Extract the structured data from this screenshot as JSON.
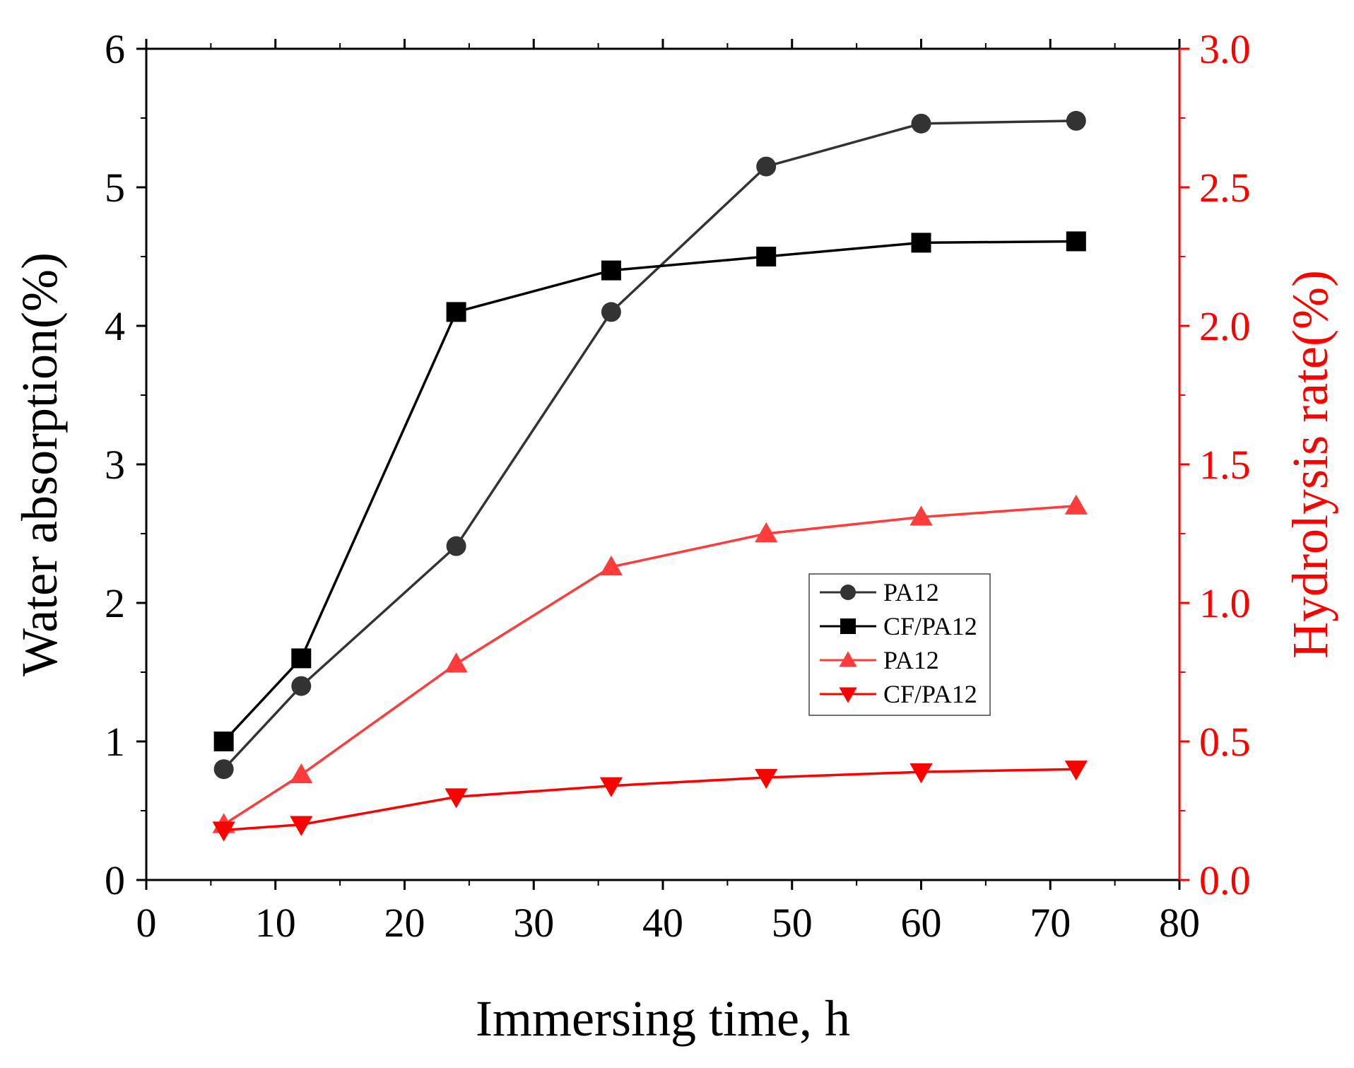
{
  "chart_data": {
    "type": "line",
    "xlabel": "Immersing time, h",
    "ylabel_left": "Water absorption(%)",
    "ylabel_right": "Hydrolysis rate(%)",
    "xlim": [
      0,
      80
    ],
    "ylim_left": [
      0,
      6
    ],
    "ylim_right": [
      0.0,
      3.0
    ],
    "x_ticks": [
      "0",
      "10",
      "20",
      "30",
      "40",
      "50",
      "60",
      "70",
      "80"
    ],
    "y_left_ticks": [
      "0",
      "1",
      "2",
      "3",
      "4",
      "5",
      "6"
    ],
    "y_right_ticks": [
      "0.0",
      "0.5",
      "1.0",
      "1.5",
      "2.0",
      "2.5",
      "3.0"
    ],
    "grid": false,
    "legend_position": "center-right",
    "colors": {
      "black": "#000000",
      "red": "#ff0000",
      "series_dark": "#333333",
      "series_light_red": "#ff3b3b"
    },
    "series": [
      {
        "name": "PA12",
        "axis": "left",
        "marker": "circle",
        "color": "#333333",
        "x": [
          6,
          12,
          24,
          36,
          48,
          60,
          72
        ],
        "values": [
          0.8,
          1.4,
          2.41,
          4.1,
          5.15,
          5.46,
          5.48
        ]
      },
      {
        "name": "CF/PA12",
        "axis": "left",
        "marker": "square",
        "color": "#000000",
        "x": [
          6,
          12,
          24,
          36,
          48,
          60,
          72
        ],
        "values": [
          1.0,
          1.6,
          4.1,
          4.4,
          4.5,
          4.6,
          4.61
        ]
      },
      {
        "name": "PA12",
        "axis": "right",
        "marker": "triangle-up",
        "color": "#ff3b3b",
        "x": [
          6,
          12,
          24,
          36,
          48,
          60,
          72
        ],
        "values": [
          0.2,
          0.38,
          0.78,
          1.13,
          1.25,
          1.31,
          1.35
        ]
      },
      {
        "name": "CF/PA12",
        "axis": "right",
        "marker": "triangle-down",
        "color": "#ff0000",
        "x": [
          6,
          12,
          24,
          36,
          48,
          60,
          72
        ],
        "values": [
          0.18,
          0.2,
          0.3,
          0.34,
          0.37,
          0.39,
          0.4
        ]
      }
    ]
  }
}
